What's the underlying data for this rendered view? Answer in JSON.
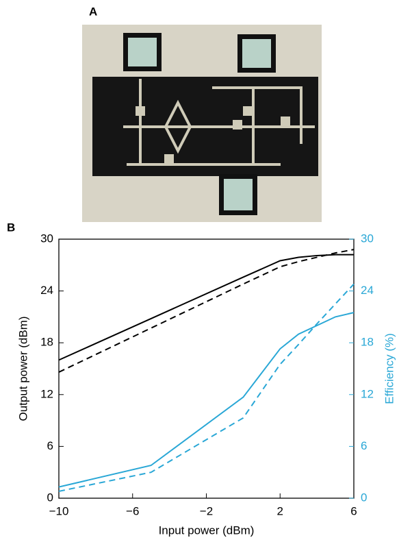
{
  "panel_labels": [
    "A",
    "B"
  ],
  "chart_data": {
    "type": "line",
    "xlabel": "Input power (dBm)",
    "ylabel": "Output power (dBm)",
    "y2label": "Efficiency (%)",
    "y2color": "#29a7d6",
    "x": [
      -10,
      -5,
      0,
      2,
      3,
      4,
      5,
      6
    ],
    "xlim": [
      -10,
      6
    ],
    "xticks": [
      {
        "value": -10,
        "label": "−10"
      },
      {
        "value": -6,
        "label": "−6"
      },
      {
        "value": -2,
        "label": "−2"
      },
      2,
      6
    ],
    "ylim": [
      0,
      30
    ],
    "yticks": [
      0,
      6,
      12,
      18,
      24,
      30
    ],
    "y2lim": [
      0,
      30
    ],
    "y2ticks": [
      0,
      6,
      12,
      18,
      24,
      30
    ],
    "series": [
      {
        "color": "#000000",
        "dashed": false,
        "values": [
          16.0,
          20.8,
          25.6,
          27.5,
          27.9,
          28.1,
          28.2,
          28.2
        ]
      },
      {
        "color": "#000000",
        "dashed": true,
        "values": [
          14.6,
          19.7,
          24.8,
          26.8,
          27.4,
          27.9,
          28.4,
          28.8
        ]
      },
      {
        "color": "#29a7d6",
        "dashed": false,
        "axis": "y2",
        "values": [
          1.3,
          3.8,
          11.7,
          17.3,
          19.0,
          20.0,
          21.0,
          21.5
        ]
      },
      {
        "color": "#29a7d6",
        "dashed": true,
        "axis": "y2",
        "values": [
          0.8,
          3.0,
          9.3,
          15.5,
          17.8,
          20.2,
          22.5,
          24.8
        ]
      }
    ]
  }
}
